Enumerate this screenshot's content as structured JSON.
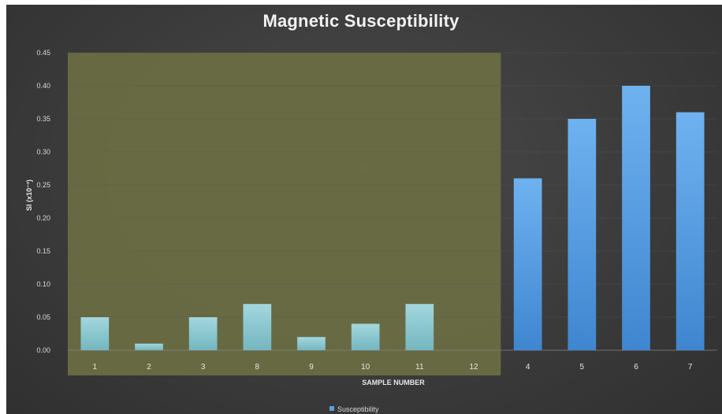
{
  "chart_data": {
    "type": "bar",
    "title": "Magnetic Susceptibility",
    "xlabel": "SAMPLE NUMBER",
    "ylabel": "SI (x10⁻³)",
    "ylim": [
      0,
      0.45
    ],
    "yticks": [
      "0.00",
      "0.05",
      "0.10",
      "0.15",
      "0.20",
      "0.25",
      "0.30",
      "0.35",
      "0.40",
      "0.45"
    ],
    "categories": [
      "1",
      "2",
      "3",
      "8",
      "9",
      "10",
      "11",
      "12",
      "4",
      "5",
      "6",
      "7"
    ],
    "series": [
      {
        "name": "Susceptibility",
        "values": [
          0.05,
          0.01,
          0.05,
          0.07,
          0.02,
          0.04,
          0.07,
          0,
          0.26,
          0.35,
          0.4,
          0.36
        ]
      }
    ],
    "highlight_categories": [
      "1",
      "2",
      "3",
      "8",
      "9",
      "10",
      "11",
      "12"
    ],
    "grid": true,
    "legend": "bottom-center",
    "colors": {
      "background": "#3c3c3c",
      "highlight": "#6b6e43",
      "bar_highlighted": "#8ec8d0",
      "bar_normal": "#5a9fe0",
      "grid": "#5a5a5a"
    }
  }
}
